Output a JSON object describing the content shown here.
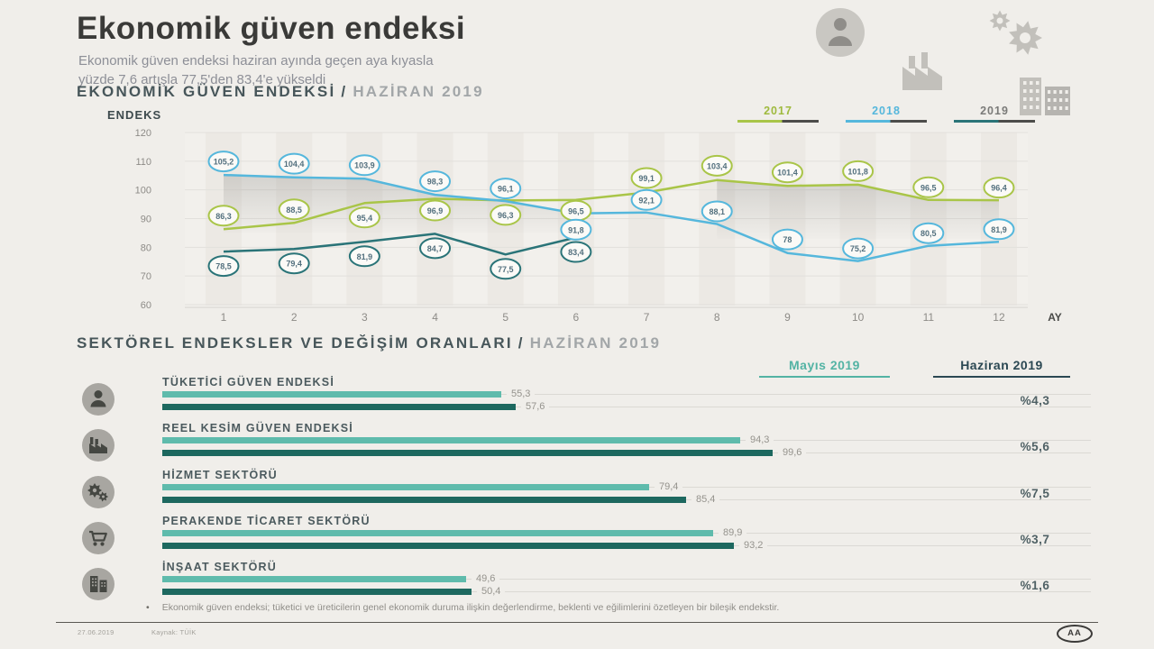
{
  "header": {
    "title": "Ekonomik güven endeksi",
    "subtitle_line1": "Ekonomik güven endeksi haziran ayında geçen aya kıyasla",
    "subtitle_line2": "yüzde 7,6 artışla 77,5'den 83,4'e yükseldi"
  },
  "section_chart": {
    "title": "EKONOMİK GÜVEN ENDEKSİ",
    "separator": "/",
    "period": "HAZİRAN 2019",
    "y_axis_label": "ENDEKS",
    "x_axis_label": "AY"
  },
  "legend": [
    {
      "label": "2017",
      "color": "#a9c548",
      "text_color": "#9fba3e"
    },
    {
      "label": "2018",
      "color": "#55b7dc",
      "text_color": "#55b7dc"
    },
    {
      "label": "2019",
      "color": "#2a7478",
      "text_color": "#7b7b79"
    }
  ],
  "chart_data": {
    "type": "line",
    "x": [
      1,
      2,
      3,
      4,
      5,
      6,
      7,
      8,
      9,
      10,
      11,
      12
    ],
    "ylim": [
      60,
      120
    ],
    "yticks": [
      120,
      110,
      100,
      90,
      80,
      70,
      60
    ],
    "grid": true,
    "legend_position": "top-right",
    "series": [
      {
        "name": "2017",
        "color": "#a9c548",
        "values": [
          86.3,
          88.5,
          95.4,
          96.9,
          96.3,
          96.5,
          99.1,
          103.4,
          101.4,
          101.8,
          96.5,
          96.4
        ]
      },
      {
        "name": "2018",
        "color": "#55b7dc",
        "values": [
          105.2,
          104.4,
          103.9,
          98.3,
          96.1,
          91.8,
          92.1,
          88.1,
          78.0,
          75.2,
          80.5,
          81.9
        ]
      },
      {
        "name": "2019",
        "color": "#2a7478",
        "values": [
          78.5,
          79.4,
          81.9,
          84.7,
          77.5,
          83.4
        ]
      }
    ]
  },
  "section_bars": {
    "title": "SEKTÖREL ENDEKSLER VE DEĞİŞİM ORANLARI",
    "separator": "/",
    "period": "HAZİRAN 2019",
    "col_may": "Mayıs 2019",
    "col_june": "Haziran 2019"
  },
  "sectors": [
    {
      "label": "TÜKETİCİ GÜVEN ENDEKSİ",
      "icon": "consumer-icon",
      "may": 55.3,
      "june": 57.6,
      "may_label": "55,3",
      "june_label": "57,6",
      "change": "%4,3"
    },
    {
      "label": "REEL KESİM GÜVEN ENDEKSİ",
      "icon": "factory-icon",
      "may": 94.3,
      "june": 99.6,
      "may_label": "94,3",
      "june_label": "99,6",
      "change": "%5,6"
    },
    {
      "label": "HİZMET SEKTÖRÜ",
      "icon": "gears-icon",
      "may": 79.4,
      "june": 85.4,
      "may_label": "79,4",
      "june_label": "85,4",
      "change": "%7,5"
    },
    {
      "label": "PERAKENDE TİCARET SEKTÖRÜ",
      "icon": "retail-icon",
      "may": 89.9,
      "june": 93.2,
      "may_label": "89,9",
      "june_label": "93,2",
      "change": "%3,7"
    },
    {
      "label": "İNŞAAT SEKTÖRÜ",
      "icon": "building-icon",
      "may": 49.6,
      "june": 50.4,
      "may_label": "49,6",
      "june_label": "50,4",
      "change": "%1,6"
    }
  ],
  "footnote": "Ekonomik güven endeksi; tüketici ve üreticilerin genel ekonomik duruma ilişkin değerlendirme, beklenti ve eğilimlerini özetleyen bir bileşik endekstir.",
  "footer": {
    "date": "27.06.2019",
    "source": "Kaynak: TÜİK",
    "logo": "AA"
  },
  "colors": {
    "background": "#f0eeea",
    "accent_2017": "#a9c548",
    "accent_2018": "#55b7dc",
    "accent_2019": "#2a7478",
    "bar_may": "#5fbbac",
    "bar_june": "#1d685f"
  }
}
